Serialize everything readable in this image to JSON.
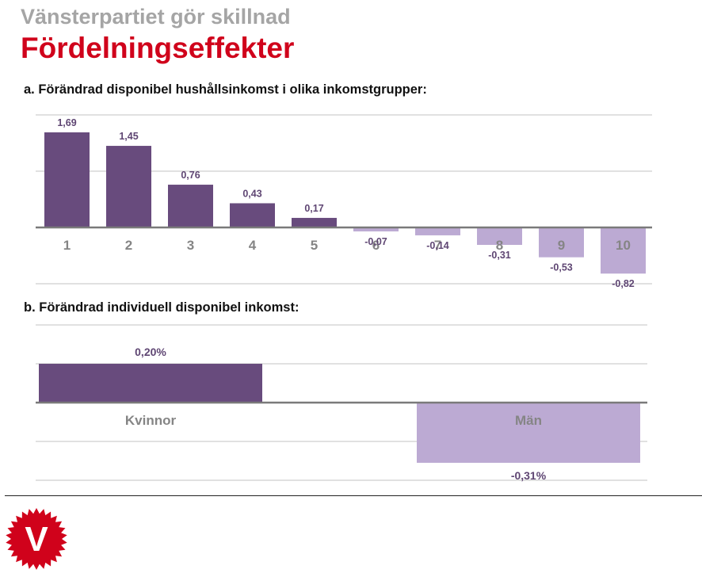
{
  "header": {
    "supertitle": "Vänsterpartiet gör skillnad",
    "title": "Fördelningseffekter"
  },
  "section_a": {
    "title": "a. Förändrad disponibel hushållsinkomst i olika inkomstgrupper:"
  },
  "section_b": {
    "title": "b. Förändrad individuell disponibel inkomst:"
  },
  "colors": {
    "positive": "#684b7d",
    "negative": "#bcaad3",
    "label": "#5f4673",
    "category": "#858585",
    "grid": "#cfcfcf",
    "axis": "#7a7a7a"
  },
  "logo": {
    "letter": "V"
  },
  "chart_data": [
    {
      "id": "a",
      "type": "bar",
      "categories": [
        "1",
        "2",
        "3",
        "4",
        "5",
        "6",
        "7",
        "8",
        "9",
        "10"
      ],
      "values": [
        1.69,
        1.45,
        0.76,
        0.43,
        0.17,
        -0.07,
        -0.14,
        -0.31,
        -0.53,
        -0.82
      ],
      "value_labels": [
        "1,69",
        "1,45",
        "0,76",
        "0,43",
        "0,17",
        "-0,07",
        "-0,14",
        "-0,31",
        "-0,53",
        "-0,82"
      ],
      "ylim": [
        -1.0,
        2.0
      ],
      "grid": true,
      "title": "a. Förändrad disponibel hushållsinkomst i olika inkomstgrupper:"
    },
    {
      "id": "b",
      "type": "bar",
      "categories": [
        "Kvinnor",
        "Män"
      ],
      "values": [
        0.2,
        -0.31
      ],
      "value_labels": [
        "0,20%",
        "-0,31%"
      ],
      "ylim": [
        -0.4,
        0.4
      ],
      "grid": true,
      "title": "b. Förändrad individuell disponibel inkomst:"
    }
  ]
}
